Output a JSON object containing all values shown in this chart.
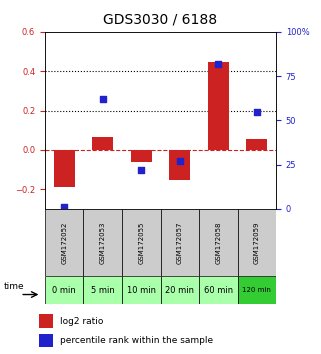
{
  "title": "GDS3030 / 6188",
  "samples": [
    "GSM172052",
    "GSM172053",
    "GSM172055",
    "GSM172057",
    "GSM172058",
    "GSM172059"
  ],
  "time_labels": [
    "0 min",
    "5 min",
    "10 min",
    "20 min",
    "60 min",
    "120 min"
  ],
  "log2_ratio": [
    -0.19,
    0.065,
    -0.06,
    -0.155,
    0.445,
    0.055
  ],
  "percentile_rank": [
    1,
    62,
    22,
    27,
    82,
    55
  ],
  "bar_color": "#cc2222",
  "dot_color": "#2222cc",
  "left_ylim": [
    -0.3,
    0.6
  ],
  "right_ylim": [
    0,
    100
  ],
  "left_yticks": [
    -0.2,
    0.0,
    0.2,
    0.4,
    0.6
  ],
  "right_yticks": [
    0,
    25,
    50,
    75,
    100
  ],
  "right_yticklabels": [
    "0",
    "25",
    "50",
    "75",
    "100%"
  ],
  "dotted_line_y": [
    0.2,
    0.4
  ],
  "dashed_zero_color": "#cc2222",
  "bg_gsm": "#cccccc",
  "bg_time_light": "#aaffaa",
  "bg_time_dark": "#33cc33",
  "legend_bar_label": "log2 ratio",
  "legend_dot_label": "percentile rank within the sample",
  "tick_fontsize": 6,
  "title_fontsize": 10,
  "gsm_fontsize": 5,
  "time_fontsize": 6
}
